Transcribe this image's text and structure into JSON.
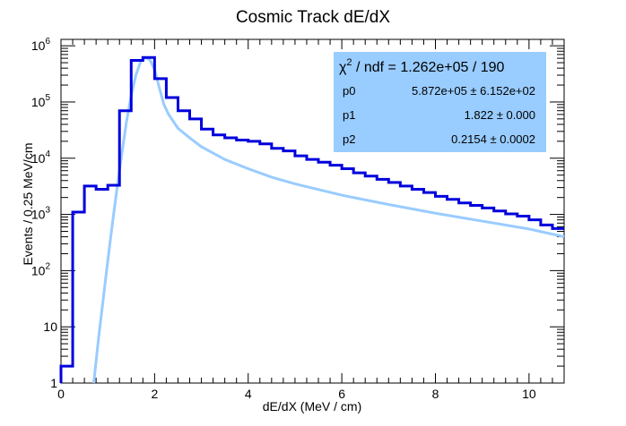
{
  "chart_data": {
    "type": "histogram",
    "title": "Cosmic Track dE/dX",
    "xlabel": "dE/dX (MeV / cm)",
    "ylabel": "Events / 0.25 MeV/cm",
    "xlim": [
      0,
      10.75
    ],
    "ylim": [
      1,
      1300000
    ],
    "yscale": "log",
    "bin_width": 0.25,
    "x_ticks": [
      {
        "value": 0,
        "label": "0"
      },
      {
        "value": 2,
        "label": "2"
      },
      {
        "value": 4,
        "label": "4"
      },
      {
        "value": 6,
        "label": "6"
      },
      {
        "value": 8,
        "label": "8"
      },
      {
        "value": 10,
        "label": "10"
      }
    ],
    "y_ticks": [
      {
        "value": 1,
        "label": "1"
      },
      {
        "value": 10,
        "label": "10"
      },
      {
        "value": 100,
        "label": "10",
        "exp": "2"
      },
      {
        "value": 1000,
        "label": "10",
        "exp": "3"
      },
      {
        "value": 10000,
        "label": "10",
        "exp": "4"
      },
      {
        "value": 100000,
        "label": "10",
        "exp": "5"
      },
      {
        "value": 1000000,
        "label": "10",
        "exp": "6"
      }
    ],
    "series": [
      {
        "kind": "histogram",
        "color": "#0000dd",
        "bin_edges_start": 0,
        "values": [
          2,
          1100,
          3200,
          2800,
          3300,
          70000,
          550000,
          620000,
          260000,
          120000,
          70000,
          50000,
          33000,
          26000,
          23000,
          21000,
          20000,
          18000,
          15000,
          13500,
          11000,
          9500,
          8500,
          7500,
          6500,
          5500,
          4800,
          4200,
          3700,
          3200,
          2800,
          2450,
          2100,
          1850,
          1600,
          1450,
          1300,
          1150,
          1020,
          930,
          800,
          650,
          560
        ]
      },
      {
        "kind": "fit",
        "color": "#99ccff",
        "x": [
          0.7,
          0.8,
          0.9,
          1.0,
          1.1,
          1.2,
          1.3,
          1.4,
          1.5,
          1.6,
          1.7,
          1.8,
          1.9,
          2.0,
          2.1,
          2.2,
          2.3,
          2.5,
          2.75,
          3.0,
          3.5,
          4.0,
          4.5,
          5.0,
          6.0,
          7.0,
          8.0,
          9.0,
          10.0,
          10.75
        ],
        "y": [
          1,
          6,
          30,
          150,
          700,
          3000,
          12000,
          45000,
          130000,
          300000,
          520000,
          620000,
          560000,
          380000,
          180000,
          90000,
          60000,
          34000,
          23000,
          16000,
          9500,
          6500,
          4600,
          3500,
          2200,
          1500,
          1050,
          760,
          550,
          400
        ]
      }
    ],
    "stats": {
      "chi2_label": "χ",
      "chi2_exp": "2",
      "chi2_text": " / ndf = 1.262e+05 / 190",
      "params": [
        {
          "name": "p0",
          "value": "5.872e+05 ± 6.152e+02"
        },
        {
          "name": "p1",
          "value": "1.822 ± 0.000"
        },
        {
          "name": "p2",
          "value": "0.2154 ± 0.0002"
        }
      ],
      "box_color": "#99ccff"
    }
  }
}
